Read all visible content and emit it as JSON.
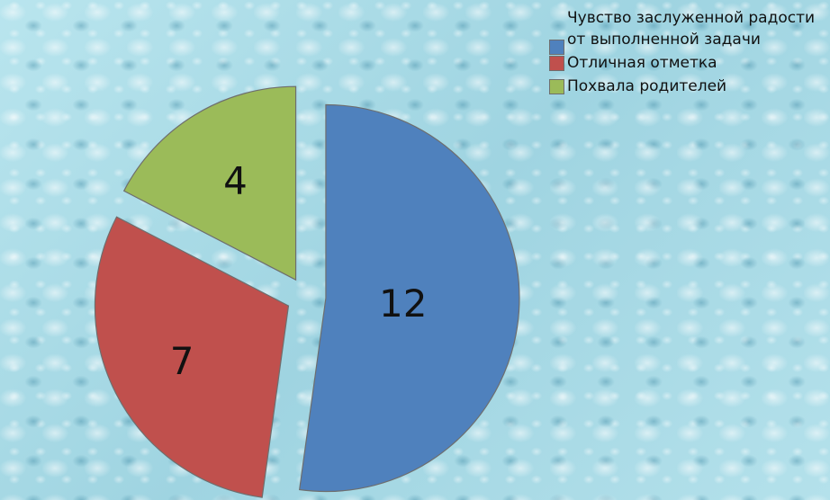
{
  "chart_data": {
    "type": "pie",
    "exploded": true,
    "categories": [
      "Чувство заслуженной радости от выполненной задачи",
      "Отличная отметка",
      "Похвала родителей"
    ],
    "values": [
      12,
      7,
      4
    ],
    "colors": [
      "#4f81bd",
      "#c0504d",
      "#9bbb59"
    ],
    "data_labels": [
      "12",
      "7",
      "4"
    ],
    "legend": "top-right"
  }
}
